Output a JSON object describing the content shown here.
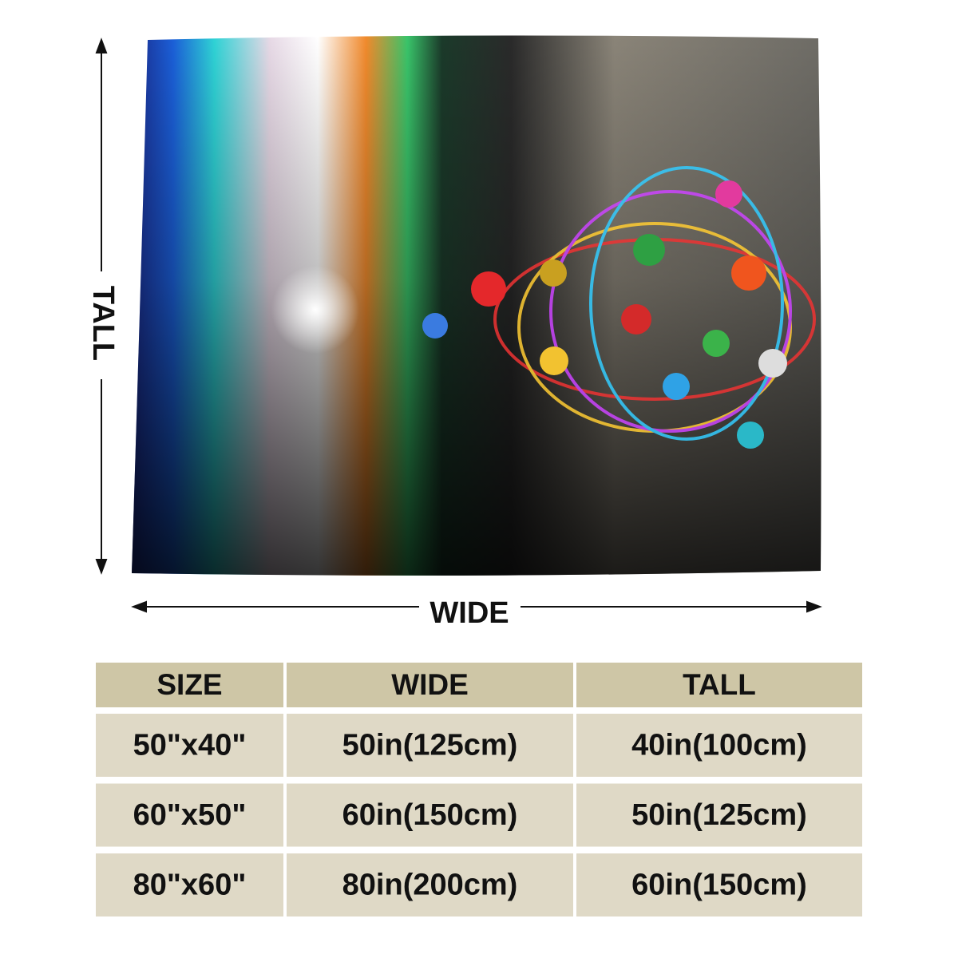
{
  "diagram": {
    "height_label": "TALL",
    "width_label": "WIDE"
  },
  "table": {
    "header": [
      "SIZE",
      "WIDE",
      "TALL"
    ],
    "rows": [
      [
        "50\"x40\"",
        "50in(125cm)",
        "40in(100cm)"
      ],
      [
        "60\"x50\"",
        "60in(150cm)",
        "50in(125cm)"
      ],
      [
        "80\"x60\"",
        "80in(200cm)",
        "60in(150cm)"
      ]
    ]
  }
}
